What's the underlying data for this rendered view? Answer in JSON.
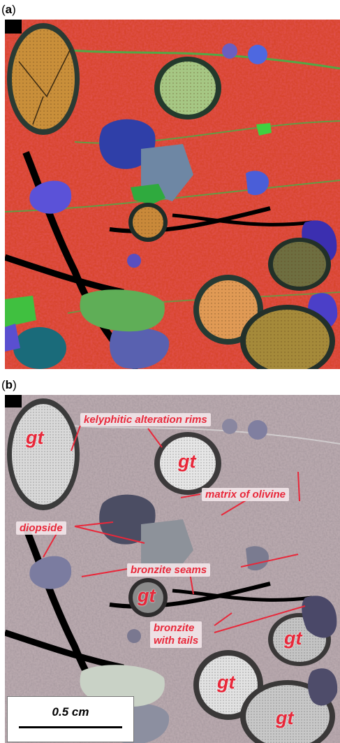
{
  "panels": {
    "a": {
      "open": "(",
      "letter": "a",
      "close": ")"
    },
    "b": {
      "open": "(",
      "letter": "b",
      "close": ")"
    }
  },
  "labels": {
    "kelyphitic": "kelyphitic alteration rims",
    "matrix": "matrix of olivine",
    "diopside": "diopside",
    "bronzite_seams": "bronzite seams",
    "bronzite_tails_line1": "bronzite",
    "bronzite_tails_line2": "with tails",
    "gt": "gt"
  },
  "scale_bar": {
    "label": "0.5 cm"
  },
  "colors": {
    "annotation": "#e8283a",
    "matrix_a": "#d8452d",
    "matrix_b": "#b9a9ae"
  }
}
